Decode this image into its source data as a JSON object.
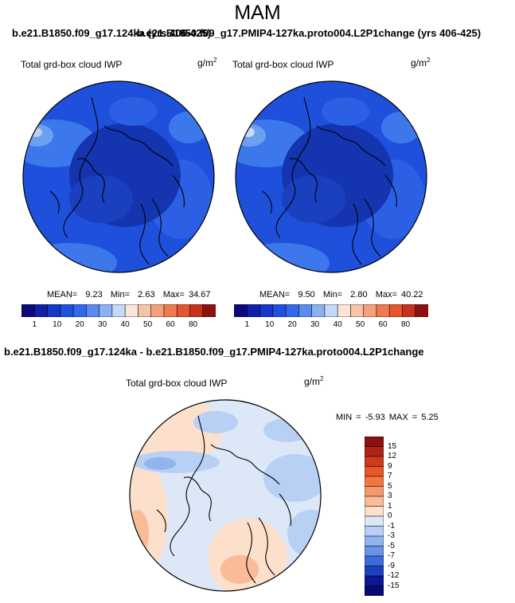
{
  "header": {
    "season": "MAM",
    "top_title_left": "b.e21.B1850.f09_g17.124ka (yrs 406-425)",
    "top_title_right": "b.e21.B1850.f09_g17.PMIP4-127ka.proto004.L2P1change (yrs 406-425)",
    "diff_title": "b.e21.B1850.f09_g17.124ka - b.e21.B1850.f09_g17.PMIP4-127ka.proto004.L2P1change"
  },
  "panels": {
    "left": {
      "label": "Total grd-box cloud IWP",
      "unit_base": "g/m",
      "unit_exp": "2",
      "mean_label": "MEAN=",
      "mean": "9.23",
      "min_label": "Min=",
      "min": "2.63",
      "max_label": "Max=",
      "max": "34.67"
    },
    "right": {
      "label": "Total grd-box cloud IWP",
      "unit_base": "g/m",
      "unit_exp": "2",
      "mean_label": "MEAN=",
      "mean": "9.50",
      "min_label": "Min=",
      "min": "2.80",
      "max_label": "Max=",
      "max": "40.22"
    },
    "diff": {
      "label": "Total grd-box cloud IWP",
      "unit_base": "g/m",
      "unit_exp": "2",
      "stats": "MIN = -5.93 MAX = 5.25"
    }
  },
  "legend_abs": {
    "ticks": [
      "1",
      "10",
      "20",
      "30",
      "40",
      "50",
      "60",
      "80"
    ],
    "colors": [
      "#0a0a7a",
      "#1020a8",
      "#1638c8",
      "#2050e0",
      "#3268ec",
      "#5a8cf0",
      "#8cb0f4",
      "#c4d8fa",
      "#fbe4d8",
      "#f8c4a8",
      "#f4a07a",
      "#ef7a50",
      "#e45530",
      "#c8321c",
      "#8c1010"
    ]
  },
  "legend_diff": {
    "ticks": [
      "15",
      "12",
      "9",
      "7",
      "5",
      "3",
      "1",
      "0",
      "-1",
      "-3",
      "-5",
      "-7",
      "-9",
      "-12",
      "-15"
    ],
    "colors": [
      "#8c1010",
      "#b02416",
      "#d03a1c",
      "#e8562a",
      "#f07840",
      "#f49a6a",
      "#f8bc98",
      "#fce0cc",
      "#dce8f8",
      "#b8d0f4",
      "#90b4ee",
      "#6894e8",
      "#3c6cdc",
      "#1c40c0",
      "#0c1894",
      "#080a70"
    ]
  },
  "maps": {
    "left_base_color": "#1e50dc",
    "right_base_color": "#1e50dc",
    "diff_base_color": "#dce8f8"
  }
}
